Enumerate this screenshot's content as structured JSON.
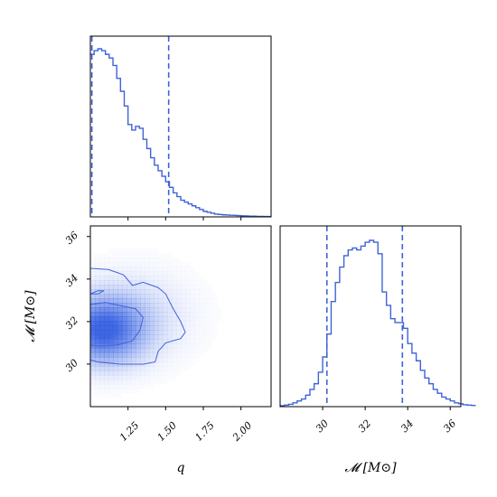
{
  "colors": {
    "accent": "#3f63d8",
    "density_max": "#2f5ae0"
  },
  "chart_data": {
    "type": "corner",
    "parameters": [
      {
        "name": "q",
        "label": "q",
        "range": [
          1.0,
          2.2
        ]
      },
      {
        "name": "M",
        "label": "𝓜 [M⊙]",
        "range": [
          28.0,
          36.5
        ]
      }
    ],
    "panels": [
      {
        "id": "q-hist",
        "type": "histogram",
        "param": "q",
        "x_ticks": [],
        "quantile_lines": [
          1.01,
          1.52
        ],
        "bin_edges_start": 1.0,
        "bin_width": 0.025,
        "counts": [
          0.88,
          0.9,
          0.91,
          0.9,
          0.88,
          0.86,
          0.82,
          0.75,
          0.68,
          0.6,
          0.5,
          0.47,
          0.49,
          0.48,
          0.42,
          0.37,
          0.32,
          0.28,
          0.25,
          0.22,
          0.19,
          0.16,
          0.13,
          0.11,
          0.09,
          0.08,
          0.07,
          0.06,
          0.05,
          0.04,
          0.03,
          0.025,
          0.02,
          0.015,
          0.013,
          0.011,
          0.01,
          0.009,
          0.008,
          0.007,
          0.006,
          0.005,
          0.004,
          0.004,
          0.003,
          0.003,
          0.002,
          0.002
        ]
      },
      {
        "id": "q-M-2d",
        "type": "density2d",
        "x_param": "q",
        "y_param": "M",
        "x_ticks": [
          {
            "value": 1.25,
            "label": "1.25"
          },
          {
            "value": 1.5,
            "label": "1.50"
          },
          {
            "value": 1.75,
            "label": "1.75"
          },
          {
            "value": 2.0,
            "label": "2.00"
          }
        ],
        "y_ticks": [
          {
            "value": 30,
            "label": "30"
          },
          {
            "value": 32,
            "label": "32"
          },
          {
            "value": 34,
            "label": "34"
          },
          {
            "value": 36,
            "label": "36"
          }
        ],
        "density_peak": {
          "q": 1.08,
          "M": 31.6
        },
        "contours": [
          {
            "level": "inner",
            "points": [
              [
                1.0,
                32.8
              ],
              [
                1.1,
                32.9
              ],
              [
                1.2,
                32.75
              ],
              [
                1.3,
                32.6
              ],
              [
                1.35,
                32.2
              ],
              [
                1.33,
                31.6
              ],
              [
                1.28,
                31.1
              ],
              [
                1.18,
                30.9
              ],
              [
                1.05,
                30.85
              ],
              [
                1.0,
                30.9
              ]
            ]
          },
          {
            "level": "outer",
            "points": [
              [
                1.0,
                34.5
              ],
              [
                1.12,
                34.45
              ],
              [
                1.22,
                34.2
              ],
              [
                1.28,
                33.7
              ],
              [
                1.35,
                33.85
              ],
              [
                1.45,
                33.6
              ],
              [
                1.5,
                33.3
              ],
              [
                1.55,
                32.6
              ],
              [
                1.6,
                32.0
              ],
              [
                1.63,
                31.5
              ],
              [
                1.6,
                31.2
              ],
              [
                1.5,
                31.0
              ],
              [
                1.45,
                30.6
              ],
              [
                1.43,
                30.1
              ],
              [
                1.35,
                30.0
              ],
              [
                1.2,
                30.0
              ],
              [
                1.05,
                30.1
              ],
              [
                1.0,
                30.2
              ]
            ]
          }
        ],
        "small_contour": [
          [
            1.0,
            33.3
          ],
          [
            1.05,
            33.45
          ],
          [
            1.09,
            33.45
          ],
          [
            1.05,
            33.3
          ],
          [
            1.0,
            33.3
          ]
        ]
      },
      {
        "id": "M-hist",
        "type": "histogram",
        "param": "M",
        "x_ticks": [
          {
            "value": 30,
            "label": "30"
          },
          {
            "value": 32,
            "label": "32"
          },
          {
            "value": 34,
            "label": "34"
          },
          {
            "value": 36,
            "label": "36"
          }
        ],
        "quantile_lines": [
          30.2,
          33.75
        ],
        "bin_edges_start": 28.0,
        "bin_width": 0.2,
        "counts": [
          0.005,
          0.008,
          0.012,
          0.02,
          0.03,
          0.04,
          0.06,
          0.09,
          0.12,
          0.18,
          0.26,
          0.38,
          0.55,
          0.65,
          0.73,
          0.79,
          0.82,
          0.83,
          0.82,
          0.84,
          0.86,
          0.87,
          0.86,
          0.8,
          0.6,
          0.53,
          0.46,
          0.44,
          0.44,
          0.41,
          0.33,
          0.28,
          0.24,
          0.19,
          0.15,
          0.12,
          0.09,
          0.07,
          0.05,
          0.04,
          0.03,
          0.02,
          0.015,
          0.01,
          0.008,
          0.006
        ]
      }
    ]
  }
}
